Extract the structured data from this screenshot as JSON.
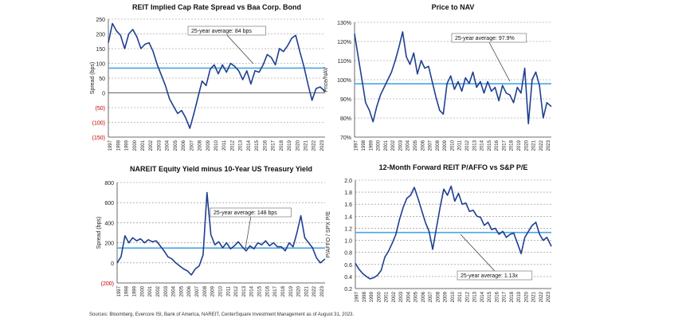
{
  "source_note": "Sources: Bloomberg, Evercore ISI, Bank of America, NAREIT, CenterSquare Investment Management as of August 31, 2023.",
  "colors": {
    "series": "#1f3f8f",
    "average": "#4aa6e3",
    "negative": "#c00000",
    "axis": "#444444",
    "grid": "#888888"
  },
  "x_tick_labels": [
    "1997",
    "1998",
    "1999",
    "2000",
    "2001",
    "2002",
    "2003",
    "2004",
    "2005",
    "2006",
    "2007",
    "2008",
    "2009",
    "2010",
    "2011",
    "2012",
    "2013",
    "2014",
    "2015",
    "2016",
    "2017",
    "2018",
    "2019",
    "2020",
    "2021",
    "2022",
    "2023"
  ],
  "chart_data": [
    {
      "id": "cap-rate-spread",
      "type": "line",
      "title": "REIT Implied Cap Rate Spread vs Baa Corp. Bond",
      "ylabel": "Spread (bps)",
      "ylim": [
        -150,
        250
      ],
      "y_ticks": [
        250,
        200,
        150,
        100,
        50,
        0,
        -50,
        -100,
        -150
      ],
      "y_tick_labels": [
        "250",
        "200",
        "150",
        "100",
        "50",
        "0",
        "(50)",
        "(100)",
        "(150)"
      ],
      "grid": "dashed",
      "zero_line": true,
      "average": {
        "value": 84,
        "label": "25-year average: 84 bps"
      },
      "x": [
        1997,
        1997.5,
        1998,
        1998.5,
        1999,
        1999.5,
        2000,
        2000.5,
        2001,
        2001.5,
        2002,
        2002.5,
        2003,
        2003.5,
        2004,
        2004.5,
        2005,
        2005.5,
        2006,
        2006.5,
        2007,
        2007.5,
        2008,
        2008.5,
        2009,
        2009.5,
        2010,
        2010.5,
        2011,
        2011.5,
        2012,
        2012.5,
        2013,
        2013.5,
        2014,
        2014.5,
        2015,
        2015.5,
        2016,
        2016.5,
        2017,
        2017.5,
        2018,
        2018.5,
        2019,
        2019.5,
        2020,
        2020.5,
        2021,
        2021.5,
        2022,
        2022.5,
        2023,
        2023.6
      ],
      "values": [
        170,
        235,
        210,
        195,
        150,
        200,
        215,
        190,
        150,
        165,
        170,
        140,
        95,
        60,
        25,
        -20,
        -45,
        -70,
        -60,
        -85,
        -120,
        -70,
        -15,
        40,
        25,
        80,
        95,
        65,
        95,
        70,
        100,
        90,
        75,
        45,
        75,
        30,
        75,
        70,
        95,
        130,
        120,
        95,
        150,
        140,
        160,
        185,
        195,
        140,
        90,
        30,
        -25,
        15,
        20,
        5
      ],
      "point_labels": false
    },
    {
      "id": "price-to-nav",
      "type": "line",
      "title": "Price to NAV",
      "ylabel": "Price/NAV",
      "ylim": [
        70,
        130
      ],
      "y_ticks": [
        130,
        120,
        110,
        100,
        90,
        80,
        70
      ],
      "y_tick_labels": [
        "130%",
        "120%",
        "110%",
        "100%",
        "90%",
        "80%",
        "70%"
      ],
      "grid": "dashed",
      "average": {
        "value": 97.9,
        "label": "25-year average: 97.9%"
      },
      "x": [
        1997,
        1997.5,
        1998,
        1998.5,
        1999,
        1999.5,
        2000,
        2000.5,
        2001,
        2001.5,
        2002,
        2002.5,
        2003,
        2003.5,
        2004,
        2004.5,
        2005,
        2005.5,
        2006,
        2006.5,
        2007,
        2007.5,
        2008,
        2008.5,
        2009,
        2009.5,
        2010,
        2010.5,
        2011,
        2011.5,
        2012,
        2012.5,
        2013,
        2013.5,
        2014,
        2014.5,
        2015,
        2015.5,
        2016,
        2016.5,
        2017,
        2017.5,
        2018,
        2018.5,
        2019,
        2019.5,
        2020,
        2020.5,
        2021,
        2021.5,
        2022,
        2022.5,
        2023,
        2023.6
      ],
      "values": [
        124,
        112,
        100,
        88,
        84,
        78,
        86,
        92,
        96,
        100,
        104,
        110,
        117,
        125,
        112,
        108,
        114,
        103,
        110,
        106,
        107,
        99,
        91,
        84,
        82,
        98,
        102,
        95,
        99,
        94,
        101,
        98,
        104,
        96,
        99,
        93,
        99,
        94,
        96,
        89,
        97,
        93,
        92,
        88,
        96,
        93,
        106,
        77,
        100,
        104,
        97,
        80,
        88,
        86
      ],
      "point_labels": false
    },
    {
      "id": "equity-yield-spread",
      "type": "line",
      "title": "NAREIT Equity Yield minus 10-Year US Treasury Yield",
      "ylabel": "Spread (bps)",
      "ylim": [
        -200,
        800
      ],
      "y_ticks": [
        800,
        600,
        400,
        200,
        0,
        -200
      ],
      "y_tick_labels": [
        "800",
        "600",
        "400",
        "200",
        "0",
        "(200)"
      ],
      "grid": "dashed",
      "average": {
        "value": 148,
        "label": "25-year average: 148 bps"
      },
      "x": [
        1997,
        1997.5,
        1998,
        1998.5,
        1999,
        1999.5,
        2000,
        2000.5,
        2001,
        2001.5,
        2002,
        2002.5,
        2003,
        2003.5,
        2004,
        2004.5,
        2005,
        2005.5,
        2006,
        2006.5,
        2007,
        2007.5,
        2008,
        2008.5,
        2009,
        2009.5,
        2010,
        2010.5,
        2011,
        2011.5,
        2012,
        2012.5,
        2013,
        2013.5,
        2014,
        2014.5,
        2015,
        2015.5,
        2016,
        2016.5,
        2017,
        2017.5,
        2018,
        2018.5,
        2019,
        2019.5,
        2020,
        2020.5,
        2021,
        2021.5,
        2022,
        2022.5,
        2023,
        2023.6
      ],
      "values": [
        0,
        60,
        270,
        200,
        250,
        220,
        240,
        200,
        230,
        210,
        220,
        170,
        120,
        60,
        40,
        0,
        -30,
        -60,
        -80,
        -120,
        -60,
        -30,
        80,
        700,
        280,
        180,
        210,
        150,
        200,
        140,
        170,
        210,
        160,
        120,
        170,
        140,
        200,
        180,
        220,
        170,
        200,
        160,
        160,
        120,
        200,
        160,
        300,
        470,
        250,
        200,
        150,
        50,
        0,
        40
      ],
      "point_labels": false
    },
    {
      "id": "paffo-vs-sp",
      "type": "line",
      "title": "12-Month Forward REIT P/AFFO vs S&P P/E",
      "ylabel": "P/AFFO / SPX P/E",
      "ylim": [
        0.2,
        2.0
      ],
      "y_ticks": [
        2.0,
        1.8,
        1.6,
        1.4,
        1.2,
        1.0,
        0.8,
        0.6,
        0.4,
        0.2
      ],
      "y_tick_labels": [
        "2.0",
        "1.8",
        "1.6",
        "1.4",
        "1.2",
        "1.0",
        "0.8",
        "0.6",
        "0.4",
        "0.2"
      ],
      "grid": "dashed",
      "average": {
        "value": 1.13,
        "label": "25-year average: 1.13x"
      },
      "x": [
        1997,
        1997.5,
        1998,
        1998.5,
        1999,
        1999.5,
        2000,
        2000.5,
        2001,
        2001.5,
        2002,
        2002.5,
        2003,
        2003.5,
        2004,
        2004.5,
        2005,
        2005.5,
        2006,
        2006.5,
        2007,
        2007.5,
        2008,
        2008.5,
        2009,
        2009.5,
        2010,
        2010.5,
        2011,
        2011.5,
        2012,
        2012.5,
        2013,
        2013.5,
        2014,
        2014.5,
        2015,
        2015.5,
        2016,
        2016.5,
        2017,
        2017.5,
        2018,
        2018.5,
        2019,
        2019.5,
        2020,
        2020.5,
        2021,
        2021.5,
        2022,
        2022.5,
        2023,
        2023.6
      ],
      "values": [
        0.62,
        0.52,
        0.45,
        0.4,
        0.36,
        0.38,
        0.42,
        0.5,
        0.72,
        0.82,
        0.95,
        1.1,
        1.35,
        1.55,
        1.7,
        1.75,
        1.88,
        1.7,
        1.5,
        1.3,
        1.15,
        0.85,
        1.2,
        1.55,
        1.85,
        1.75,
        1.9,
        1.65,
        1.78,
        1.6,
        1.62,
        1.48,
        1.5,
        1.4,
        1.38,
        1.25,
        1.3,
        1.18,
        1.2,
        1.1,
        1.15,
        1.05,
        1.1,
        1.12,
        0.95,
        0.78,
        1.05,
        1.15,
        1.25,
        1.3,
        1.1,
        1.0,
        1.05,
        0.9
      ],
      "point_labels": false
    }
  ]
}
